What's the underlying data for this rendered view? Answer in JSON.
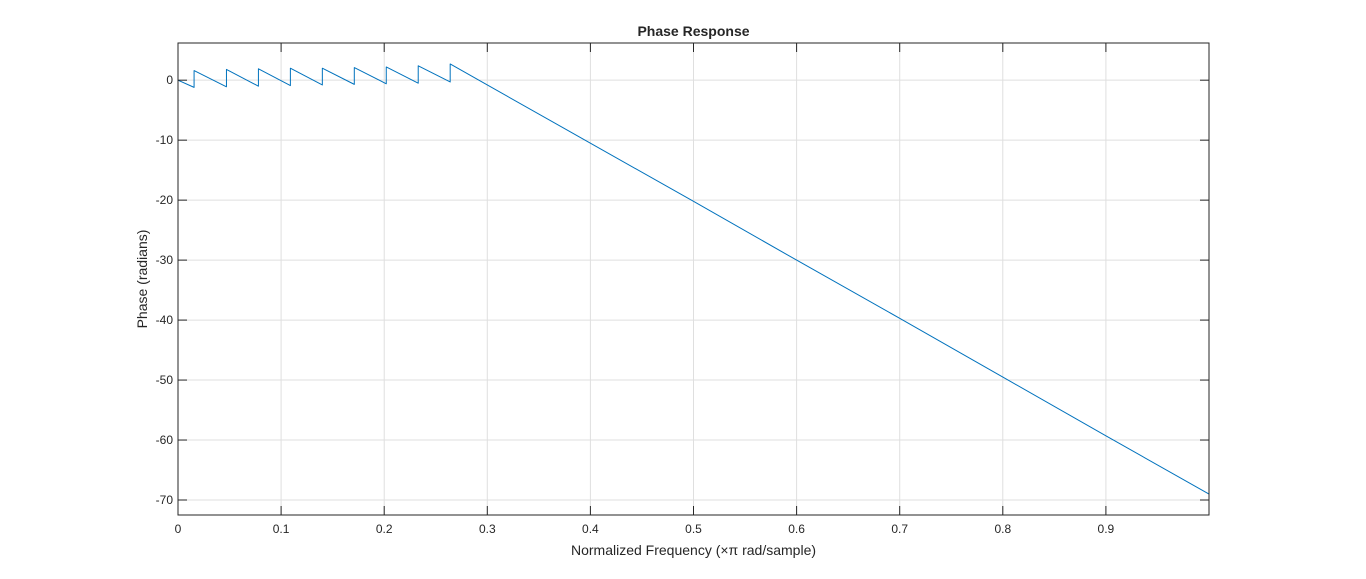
{
  "chart_data": {
    "type": "line",
    "title": "Phase Response",
    "xlabel": "Normalized Frequency (×π rad/sample)",
    "ylabel": "Phase (radians)",
    "xlim": [
      0,
      1
    ],
    "ylim": [
      -72.5,
      6.2
    ],
    "grid": true,
    "x_ticks": [
      0,
      0.1,
      0.2,
      0.3,
      0.4,
      0.5,
      0.6,
      0.7,
      0.8,
      0.9
    ],
    "y_ticks": [
      0,
      -10,
      -20,
      -30,
      -40,
      -50,
      -60,
      -70
    ],
    "series": [
      {
        "color": "#0072BD",
        "points": [
          [
            0.0,
            0.0
          ],
          [
            0.0156,
            -1.2
          ],
          [
            0.0156,
            1.6
          ],
          [
            0.047,
            -1.1
          ],
          [
            0.047,
            1.8
          ],
          [
            0.078,
            -1.0
          ],
          [
            0.078,
            1.9
          ],
          [
            0.109,
            -0.9
          ],
          [
            0.109,
            2.0
          ],
          [
            0.14,
            -0.8
          ],
          [
            0.14,
            2.0
          ],
          [
            0.171,
            -0.7
          ],
          [
            0.171,
            2.1
          ],
          [
            0.202,
            -0.6
          ],
          [
            0.202,
            2.2
          ],
          [
            0.233,
            -0.5
          ],
          [
            0.233,
            2.4
          ],
          [
            0.264,
            -0.3
          ],
          [
            0.264,
            2.7
          ],
          [
            0.3,
            -0.8
          ],
          [
            0.4,
            -10.5
          ],
          [
            0.5,
            -20.2
          ],
          [
            0.6,
            -30.0
          ],
          [
            0.7,
            -39.7
          ],
          [
            0.8,
            -49.5
          ],
          [
            0.9,
            -59.3
          ],
          [
            1.0,
            -69.0
          ]
        ]
      }
    ]
  }
}
